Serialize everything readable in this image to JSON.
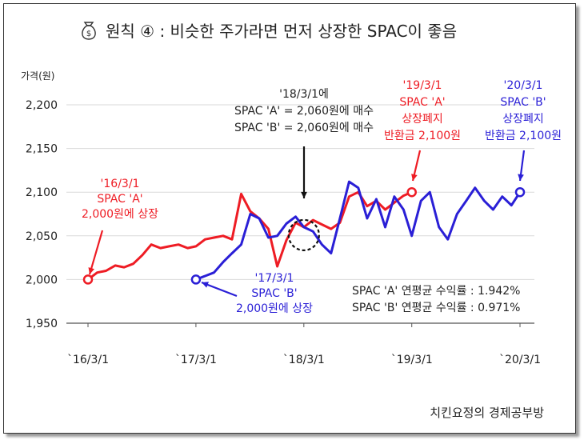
{
  "title": "원칙 ④ :  비슷한 주가라면 먼저 상장한 SPAC이 좋음",
  "footer": "치킨요정의 경제공부방",
  "colors": {
    "A": "#ee1c24",
    "B": "#2a1fd6",
    "axis": "#333333"
  },
  "icon": "money-bag-icon",
  "chart_data": {
    "type": "line",
    "ylabel": "가격(원)",
    "ylim": [
      1950,
      2200
    ],
    "yticks": [
      2200,
      2150,
      2100,
      2050,
      2000,
      1950
    ],
    "ytick_labels": [
      "2,200",
      "2,150",
      "2,100",
      "2,050",
      "2,000",
      "1,950"
    ],
    "xlim": [
      "2016-03-01",
      "2020-04-01"
    ],
    "xticks": [
      "2016-03-01",
      "2017-03-01",
      "2018-03-01",
      "2019-03-01",
      "2020-03-01"
    ],
    "xtick_labels": [
      "`16/3/1",
      "`17/3/1",
      "`18/3/1",
      "`19/3/1",
      "`20/3/1"
    ],
    "series": [
      {
        "key": "A",
        "x": [
          "2016-03-01",
          "2016-04-01",
          "2016-05-01",
          "2016-06-01",
          "2016-07-01",
          "2016-08-01",
          "2016-09-01",
          "2016-10-01",
          "2016-11-01",
          "2016-12-01",
          "2017-01-01",
          "2017-02-01",
          "2017-03-01",
          "2017-04-01",
          "2017-05-01",
          "2017-06-01",
          "2017-07-01",
          "2017-08-01",
          "2017-09-01",
          "2017-10-01",
          "2017-11-01",
          "2017-12-01",
          "2018-01-01",
          "2018-02-01",
          "2018-03-01",
          "2018-04-01",
          "2018-05-01",
          "2018-06-01",
          "2018-07-01",
          "2018-08-01",
          "2018-09-01",
          "2018-10-01",
          "2018-11-01",
          "2018-12-01",
          "2019-01-01",
          "2019-02-01",
          "2019-03-01"
        ],
        "values": [
          2000,
          2008,
          2010,
          2016,
          2014,
          2018,
          2028,
          2040,
          2036,
          2038,
          2040,
          2036,
          2038,
          2046,
          2048,
          2050,
          2046,
          2098,
          2078,
          2070,
          2058,
          2015,
          2045,
          2065,
          2060,
          2068,
          2063,
          2058,
          2065,
          2095,
          2100,
          2084,
          2090,
          2080,
          2088,
          2096,
          2100
        ]
      },
      {
        "key": "B",
        "x": [
          "2017-03-01",
          "2017-04-01",
          "2017-05-01",
          "2017-06-01",
          "2017-07-01",
          "2017-08-01",
          "2017-09-01",
          "2017-10-01",
          "2017-11-01",
          "2017-12-01",
          "2018-01-01",
          "2018-02-01",
          "2018-03-01",
          "2018-04-01",
          "2018-05-01",
          "2018-06-01",
          "2018-07-01",
          "2018-08-01",
          "2018-09-01",
          "2018-10-01",
          "2018-11-01",
          "2018-12-01",
          "2019-01-01",
          "2019-02-01",
          "2019-03-01",
          "2019-04-01",
          "2019-05-01",
          "2019-06-01",
          "2019-07-01",
          "2019-08-01",
          "2019-09-01",
          "2019-10-01",
          "2019-11-01",
          "2019-12-01",
          "2020-01-01",
          "2020-02-01",
          "2020-03-01"
        ],
        "values": [
          2000,
          2004,
          2008,
          2020,
          2030,
          2040,
          2075,
          2070,
          2048,
          2050,
          2064,
          2072,
          2060,
          2055,
          2040,
          2030,
          2070,
          2112,
          2105,
          2070,
          2092,
          2060,
          2095,
          2080,
          2050,
          2090,
          2100,
          2060,
          2046,
          2075,
          2090,
          2105,
          2090,
          2080,
          2095,
          2085,
          2100
        ]
      }
    ],
    "markers": [
      {
        "series": "A",
        "x": "2016-03-01",
        "y": 2000
      },
      {
        "series": "A",
        "x": "2019-03-01",
        "y": 2100
      },
      {
        "series": "B",
        "x": "2017-03-01",
        "y": 2000
      },
      {
        "series": "B",
        "x": "2020-03-01",
        "y": 2100
      }
    ],
    "annotations": {
      "a_listing": [
        "'16/3/1",
        "SPAC 'A'",
        "2,000원에 상장"
      ],
      "b_listing": [
        "'17/3/1",
        "SPAC 'B'",
        "2,000원에 상장"
      ],
      "buy": [
        "'18/3/1에",
        "SPAC 'A' = 2,060원에 매수",
        "SPAC 'B' = 2,060원에 매수"
      ],
      "a_delist": [
        "'19/3/1",
        "SPAC 'A'",
        "상장폐지",
        "반환금 2,100원"
      ],
      "b_delist": [
        "'20/3/1",
        "SPAC 'B'",
        "상장폐지",
        "반환금 2,100원"
      ],
      "returns": [
        "SPAC 'A' 연평균 수익률 : 1.942%",
        "SPAC 'B' 연평균 수익률 : 0.971%"
      ]
    }
  }
}
